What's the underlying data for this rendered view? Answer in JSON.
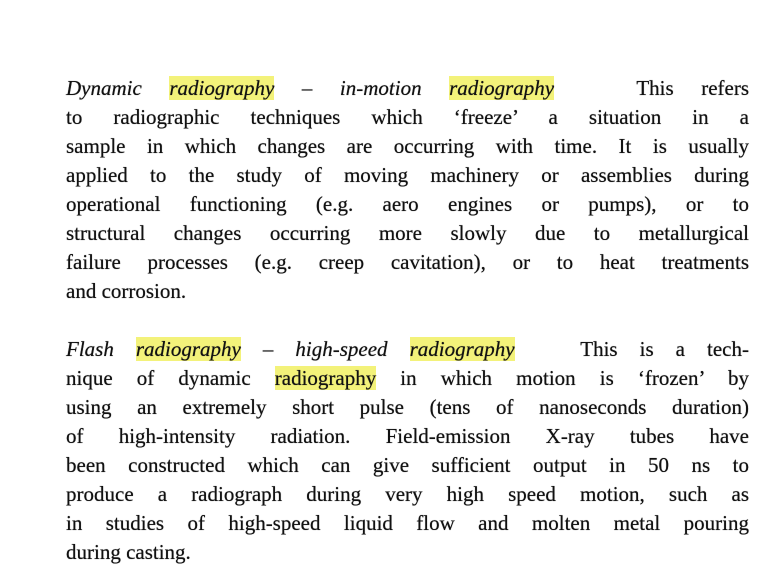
{
  "highlight_color": "#f3f27a",
  "paragraphs": [
    {
      "lines": [
        [
          {
            "t": "Dynamic ",
            "i": true
          },
          {
            "t": "radiography",
            "i": true,
            "h": true
          },
          {
            "t": " – in-motion ",
            "i": true
          },
          {
            "t": "radiography",
            "i": true,
            "h": true
          },
          {
            "t": "   This refers"
          }
        ],
        [
          {
            "t": "to radiographic techniques which ‘freeze’ a situation in a"
          }
        ],
        [
          {
            "t": "sample in which changes are occurring with time. It is usually"
          }
        ],
        [
          {
            "t": "applied to the study of moving machinery or assemblies during"
          }
        ],
        [
          {
            "t": "operational functioning (e.g. aero engines or pumps), or to"
          }
        ],
        [
          {
            "t": "structural changes occurring more slowly due to metallurgical"
          }
        ],
        [
          {
            "t": "failure processes (e.g. creep cavitation), or to heat treatments"
          }
        ],
        [
          {
            "t": "and corrosion."
          }
        ]
      ]
    },
    {
      "lines": [
        [
          {
            "t": "Flash ",
            "i": true
          },
          {
            "t": "radiography",
            "i": true,
            "h": true
          },
          {
            "t": " – high-speed ",
            "i": true
          },
          {
            "t": "radiography",
            "i": true,
            "h": true
          },
          {
            "t": "   This is a tech-"
          }
        ],
        [
          {
            "t": "nique of dynamic "
          },
          {
            "t": "radiography",
            "h": true
          },
          {
            "t": " in which motion is ‘frozen’ by"
          }
        ],
        [
          {
            "t": "using an extremely short pulse (tens of nanoseconds duration)"
          }
        ],
        [
          {
            "t": "of high-intensity radiation. Field-emission X-ray tubes have"
          }
        ],
        [
          {
            "t": "been constructed which can give sufficient output in 50 ns to"
          }
        ],
        [
          {
            "t": "produce a radiograph during very high speed motion, such as"
          }
        ],
        [
          {
            "t": "in studies of high-speed liquid flow and molten metal pouring"
          }
        ],
        [
          {
            "t": "during casting."
          }
        ]
      ]
    }
  ]
}
